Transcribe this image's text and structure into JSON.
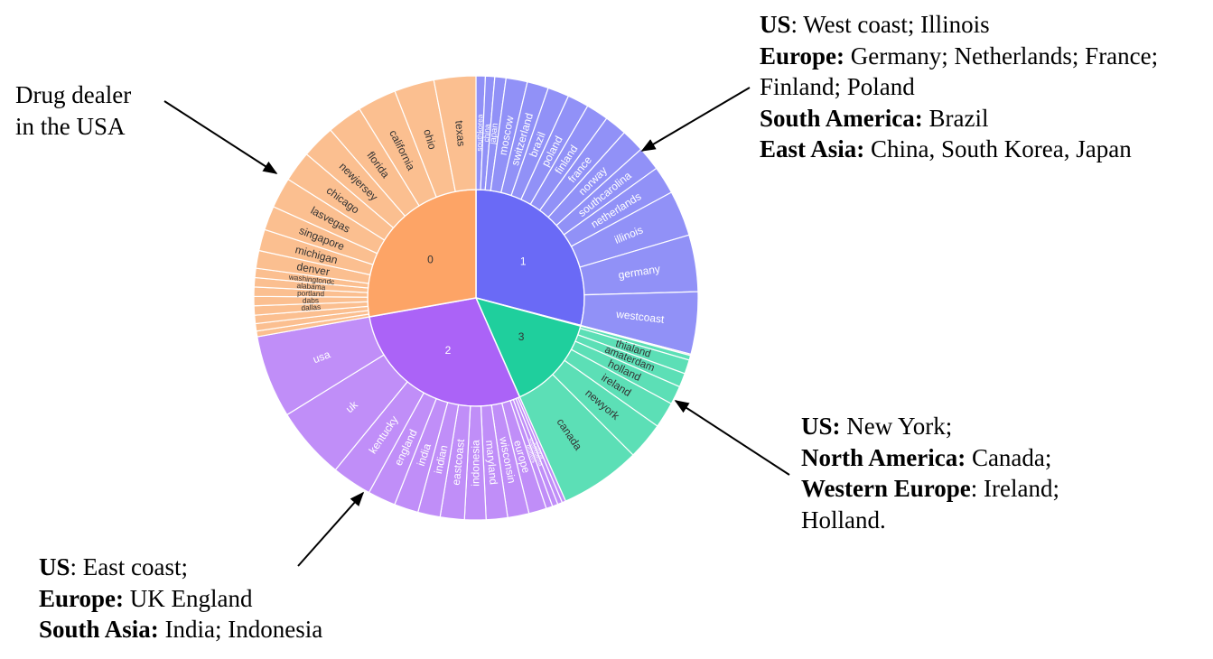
{
  "annotations": {
    "drug_dealer": {
      "lines": [
        [
          {
            "t": "Drug dealer",
            "b": false
          }
        ],
        [
          {
            "t": "in the USA",
            "b": false
          }
        ]
      ]
    },
    "cluster_1": {
      "lines": [
        [
          {
            "t": "US",
            "b": true
          },
          {
            "t": ": West coast; Illinois",
            "b": false
          }
        ],
        [
          {
            "t": "Europe:",
            "b": true
          },
          {
            "t": " Germany; Netherlands; France;",
            "b": false
          }
        ],
        [
          {
            "t": "Finland; Poland",
            "b": false
          }
        ],
        [
          {
            "t": "South America:",
            "b": true
          },
          {
            "t": " Brazil",
            "b": false
          }
        ],
        [
          {
            "t": "East Asia:",
            "b": true
          },
          {
            "t": " China, South Korea, Japan",
            "b": false
          }
        ]
      ]
    },
    "cluster_3": {
      "lines": [
        [
          {
            "t": "US:",
            "b": true
          },
          {
            "t": " New York;",
            "b": false
          }
        ],
        [
          {
            "t": "North America:",
            "b": true
          },
          {
            "t": " Canada;",
            "b": false
          }
        ],
        [
          {
            "t": "Western Europe",
            "b": true
          },
          {
            "t": ": Ireland;",
            "b": false
          }
        ],
        [
          {
            "t": "Holland.",
            "b": false
          }
        ]
      ]
    },
    "cluster_2": {
      "lines": [
        [
          {
            "t": "US",
            "b": true
          },
          {
            "t": ": East coast;",
            "b": false
          }
        ],
        [
          {
            "t": "Europe:",
            "b": true
          },
          {
            "t": " UK England",
            "b": false
          }
        ],
        [
          {
            "t": "South Asia:",
            "b": true
          },
          {
            "t": " India; Indonesia",
            "b": false
          }
        ]
      ]
    }
  },
  "chart_data": {
    "type": "sunburst",
    "colors": {
      "1": {
        "inner": "#6a6af6",
        "outer": "#9191f7"
      },
      "3": {
        "inner": "#1fcf9d",
        "outer": "#5cdfb6"
      },
      "2": {
        "inner": "#ab63f7",
        "outer": "#c08ef8"
      },
      "0": {
        "inner": "#fda466",
        "outer": "#fbbf90"
      }
    },
    "clusters": [
      {
        "name": "1",
        "leaves": [
          {
            "label": "southkorea",
            "value": 1.0
          },
          {
            "label": "china",
            "value": 1.0
          },
          {
            "label": "japan",
            "value": 1.2
          },
          {
            "label": "moscow",
            "value": 2.3
          },
          {
            "label": "switzerland",
            "value": 2.3
          },
          {
            "label": "brazil",
            "value": 2.3
          },
          {
            "label": "poland",
            "value": 2.3
          },
          {
            "label": "finland",
            "value": 2.4
          },
          {
            "label": "france",
            "value": 2.4
          },
          {
            "label": "norway",
            "value": 2.5
          },
          {
            "label": "southcarolina",
            "value": 2.6
          },
          {
            "label": "netherlands",
            "value": 3.0
          },
          {
            "label": "illinois",
            "value": 4.9
          },
          {
            "label": "germany",
            "value": 6.1
          },
          {
            "label": "westcoast",
            "value": 6.7
          }
        ]
      },
      {
        "name": "",
        "leaves": [
          {
            "label": "",
            "value": 0.15
          }
        ]
      },
      {
        "name": "3",
        "leaves": [
          {
            "label": "",
            "value": 0.5
          },
          {
            "label": "thialand",
            "value": 1.5
          },
          {
            "label": "amaterdam",
            "value": 1.5
          },
          {
            "label": "holland",
            "value": 2.0
          },
          {
            "label": "ireland",
            "value": 2.8
          },
          {
            "label": "newyork",
            "value": 4.0
          },
          {
            "label": "canada",
            "value": 8.7
          }
        ]
      },
      {
        "name": "2",
        "leaves": [
          {
            "label": "",
            "value": 0.4
          },
          {
            "label": "indiana",
            "value": 0.5
          },
          {
            "label": "southdakota",
            "value": 0.6
          },
          {
            "label": "blotters",
            "value": 0.7
          },
          {
            "label": "europe",
            "value": 1.9
          },
          {
            "label": "wisconsin",
            "value": 2.3
          },
          {
            "label": "maryland",
            "value": 2.3
          },
          {
            "label": "indonesia",
            "value": 2.3
          },
          {
            "label": "eastcoast",
            "value": 2.6
          },
          {
            "label": "indian",
            "value": 2.4
          },
          {
            "label": "india",
            "value": 2.6
          },
          {
            "label": "england",
            "value": 3.0
          },
          {
            "label": "kentucky",
            "value": 4.3
          },
          {
            "label": "uk",
            "value": 7.8
          },
          {
            "label": "usa",
            "value": 8.9
          }
        ]
      },
      {
        "name": "0",
        "leaves": [
          {
            "label": "",
            "value": 0.6
          },
          {
            "label": "",
            "value": 0.8
          },
          {
            "label": "",
            "value": 0.9
          },
          {
            "label": "dallas",
            "value": 1.0
          },
          {
            "label": "dabs",
            "value": 1.0
          },
          {
            "label": "portland",
            "value": 1.0
          },
          {
            "label": "alabama",
            "value": 1.0
          },
          {
            "label": "washingtondc",
            "value": 1.0
          },
          {
            "label": "denver",
            "value": 1.9
          },
          {
            "label": "michigan",
            "value": 2.3
          },
          {
            "label": "singapore",
            "value": 2.6
          },
          {
            "label": "lasvegas",
            "value": 3.3
          },
          {
            "label": "chicago",
            "value": 3.3
          },
          {
            "label": "newjersey",
            "value": 3.6
          },
          {
            "label": "florida",
            "value": 3.8
          },
          {
            "label": "california",
            "value": 4.2
          },
          {
            "label": "ohio",
            "value": 4.3
          },
          {
            "label": "texas",
            "value": 4.5
          }
        ]
      }
    ]
  }
}
